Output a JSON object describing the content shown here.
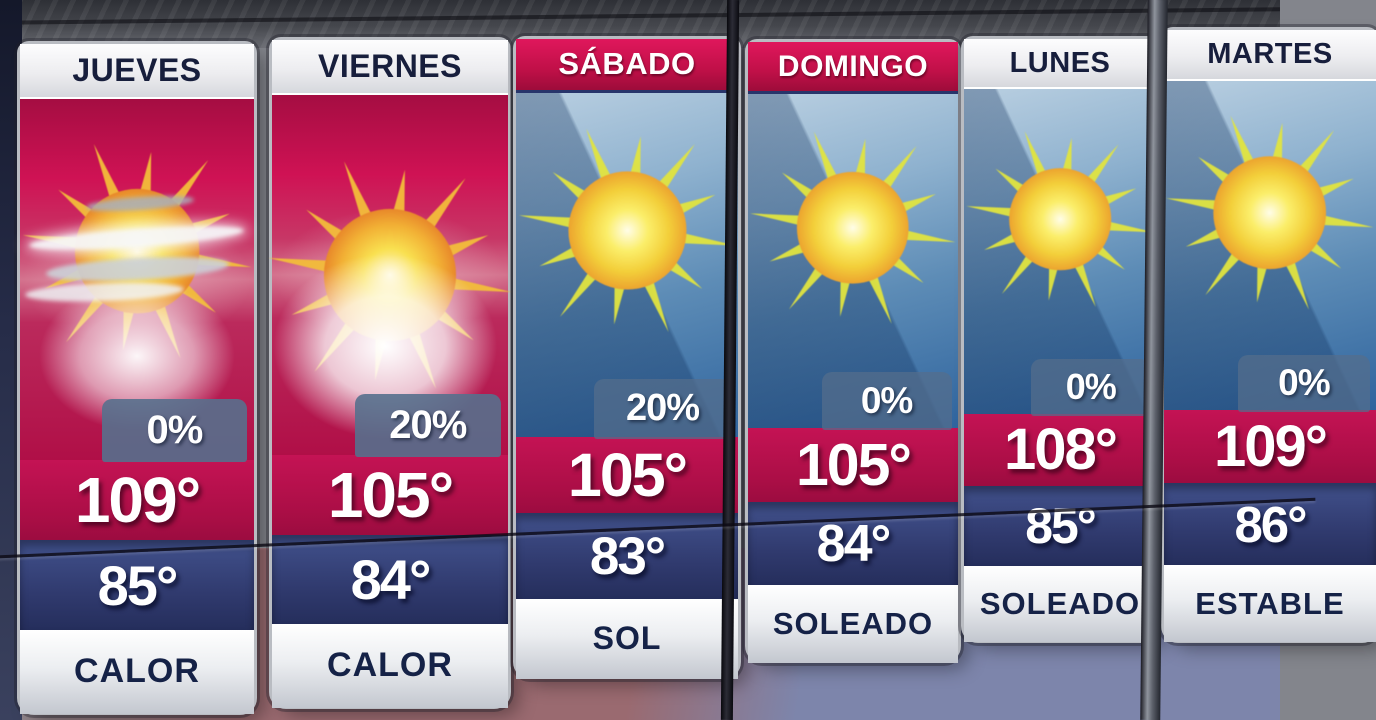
{
  "chart_data": {
    "type": "table",
    "description": "Six-day TV weather forecast panel (Spanish)",
    "columns": [
      "day",
      "precip_chance",
      "high_temp",
      "low_temp",
      "condition"
    ],
    "rows": [
      {
        "day": "JUEVES",
        "precip": "0%",
        "high": "109°",
        "low": "85°",
        "condition": "CALOR",
        "icon": "sun-clouds",
        "panel": "red",
        "header": "white"
      },
      {
        "day": "VIERNES",
        "precip": "20%",
        "high": "105°",
        "low": "84°",
        "condition": "CALOR",
        "icon": "sun-glow",
        "panel": "red",
        "header": "white"
      },
      {
        "day": "SÁBADO",
        "precip": "20%",
        "high": "105°",
        "low": "83°",
        "condition": "SOL",
        "icon": "sun",
        "panel": "blue",
        "header": "red"
      },
      {
        "day": "DOMINGO",
        "precip": "0%",
        "high": "105°",
        "low": "84°",
        "condition": "SOLEADO",
        "icon": "sun",
        "panel": "blue",
        "header": "red"
      },
      {
        "day": "LUNES",
        "precip": "0%",
        "high": "108°",
        "low": "85°",
        "condition": "SOLEADO",
        "icon": "sun",
        "panel": "blue",
        "header": "white"
      },
      {
        "day": "MARTES",
        "precip": "0%",
        "high": "109°",
        "low": "86°",
        "condition": "ESTABLE",
        "icon": "sun",
        "panel": "blue",
        "header": "white"
      }
    ]
  },
  "colors": {
    "high_band_crimson": "#ab0e46",
    "low_band_navy": "#303a6e",
    "precip_tab_slate": "#56708d",
    "header_red": "#c01048",
    "header_white": "#ededf0",
    "header_text_navy": "#171e3c",
    "condition_text_navy": "#152247",
    "sun_yellow": "#f5e04a",
    "sky_blue": "#5d8cb6",
    "panel_red": "#cf1254"
  }
}
